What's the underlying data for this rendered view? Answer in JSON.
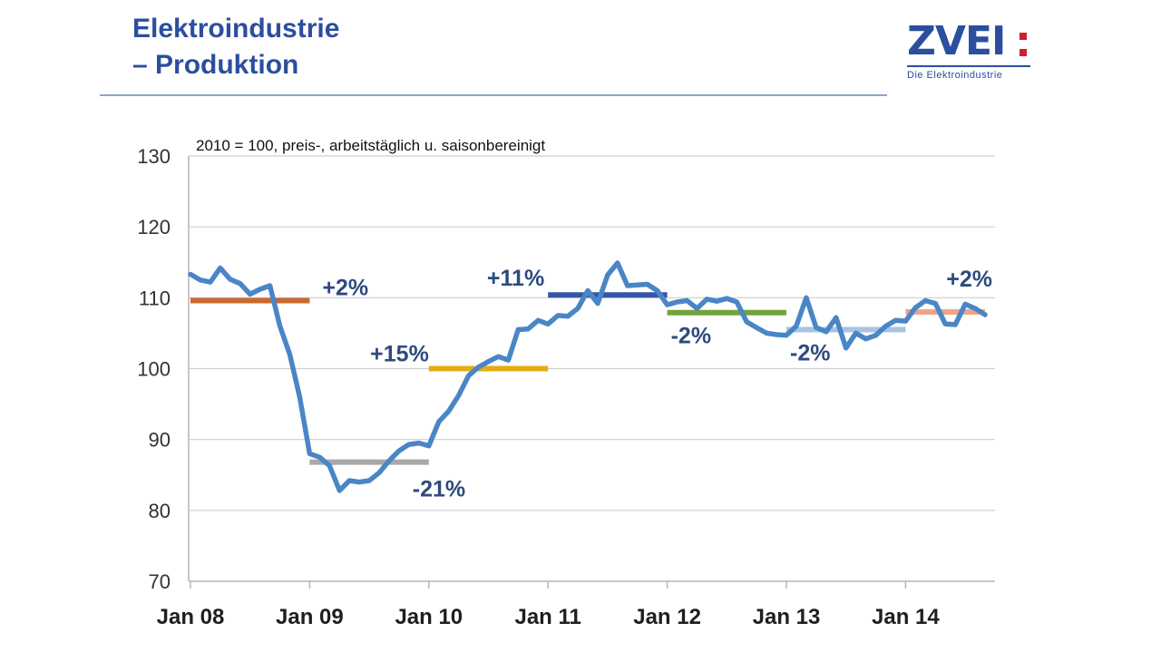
{
  "header": {
    "title_line1": "Elektroindustrie",
    "title_line2": "– Produktion"
  },
  "logo": {
    "wordmark": "ZVEI",
    "tagline": "Die Elektroindustrie",
    "colors": {
      "blue": "#2b4f9e",
      "red": "#d0202e"
    }
  },
  "chart_data": {
    "type": "line",
    "subtitle": "2010 = 100, preis-, arbeitstäglich u. saisonbereinigt",
    "ylim": [
      70,
      130
    ],
    "yticks": [
      70,
      80,
      90,
      100,
      110,
      120,
      130
    ],
    "xlim": [
      0,
      80
    ],
    "xticks": [
      {
        "pos": 0,
        "label": "Jan 08"
      },
      {
        "pos": 12,
        "label": "Jan 09"
      },
      {
        "pos": 24,
        "label": "Jan 10"
      },
      {
        "pos": 36,
        "label": "Jan 11"
      },
      {
        "pos": 48,
        "label": "Jan 12"
      },
      {
        "pos": 60,
        "label": "Jan 13"
      },
      {
        "pos": 72,
        "label": "Jan 14"
      }
    ],
    "grid": true,
    "series": [
      {
        "color": "#4a86c6",
        "start": "Jan 08",
        "frequency": "monthly",
        "values": [
          113.3,
          112.5,
          112.2,
          114.2,
          112.6,
          112.0,
          110.5,
          111.2,
          111.7,
          106.0,
          102.0,
          96.0,
          88.0,
          87.5,
          86.3,
          82.8,
          84.2,
          84.0,
          84.2,
          85.3,
          87.0,
          88.4,
          89.3,
          89.5,
          89.1,
          92.5,
          94.0,
          96.2,
          99.0,
          100.2,
          101.0,
          101.7,
          101.2,
          105.5,
          105.6,
          106.8,
          106.3,
          107.5,
          107.4,
          108.5,
          111.0,
          109.2,
          113.2,
          114.9,
          111.7,
          111.8,
          111.9,
          111.0,
          109.0,
          109.4,
          109.6,
          108.5,
          109.8,
          109.5,
          109.9,
          109.4,
          106.6,
          105.8,
          105.0,
          104.8,
          104.7,
          106.0,
          110.0,
          105.8,
          105.2,
          107.2,
          102.9,
          105.0,
          104.2,
          104.7,
          106.0,
          106.8,
          106.7,
          108.6,
          109.6,
          109.2,
          106.3,
          106.2,
          109.1,
          108.5,
          107.6
        ]
      }
    ],
    "period_averages": [
      {
        "from": 0,
        "to": 12,
        "value": 109.6,
        "label": "+2%",
        "color": "#c8692f"
      },
      {
        "from": 12,
        "to": 24,
        "value": 86.8,
        "label": "-21%",
        "color": "#a8a8a8"
      },
      {
        "from": 24,
        "to": 36,
        "value": 100.0,
        "label": "+15%",
        "color": "#e3ae12"
      },
      {
        "from": 36,
        "to": 48,
        "value": 110.4,
        "label": "+11%",
        "color": "#3556a4"
      },
      {
        "from": 48,
        "to": 60,
        "value": 107.9,
        "label": "-2%",
        "color": "#72a43c"
      },
      {
        "from": 60,
        "to": 72,
        "value": 105.5,
        "label": "-2%",
        "color": "#a9c3e5"
      },
      {
        "from": 72,
        "to": 80,
        "value": 108.0,
        "label": "+2%",
        "color": "#f0a38b"
      }
    ],
    "label_color": "#2e4a7e"
  }
}
